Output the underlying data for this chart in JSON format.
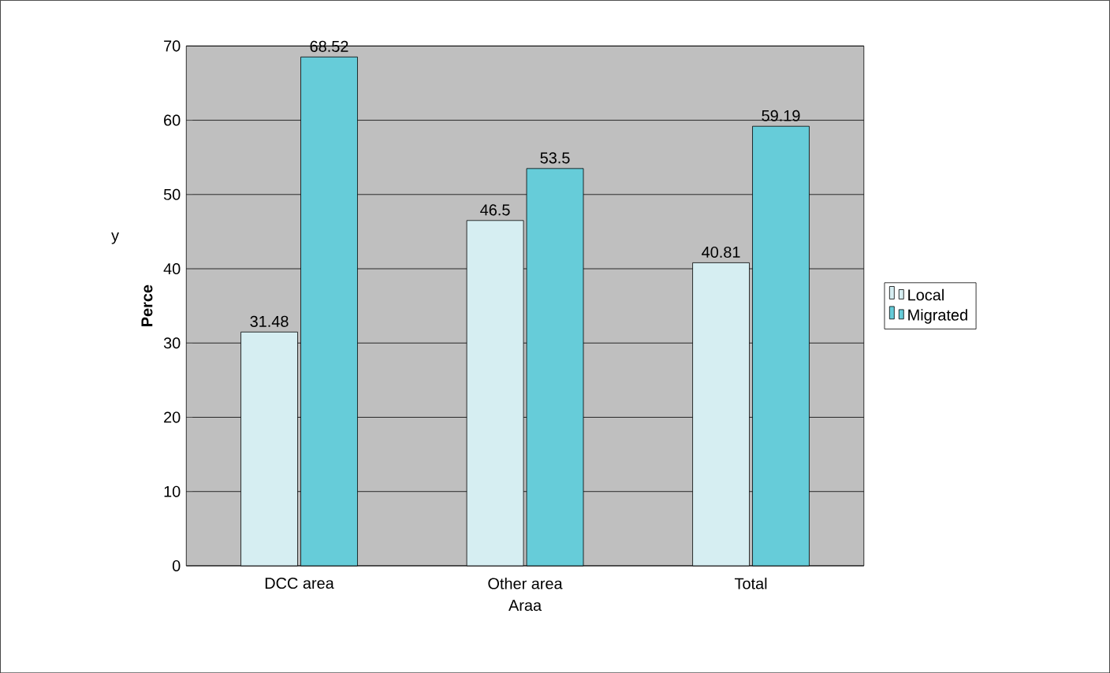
{
  "chart_data": {
    "type": "bar",
    "xlabel": "Araa",
    "ylabel": "Perce",
    "annotations": [
      "y"
    ],
    "categories": [
      "DCC area",
      "Other area",
      "Total"
    ],
    "series": [
      {
        "name": "Local",
        "color": "#d6eef2",
        "values": [
          31.48,
          46.5,
          40.81
        ]
      },
      {
        "name": "Migrated",
        "color": "#66ccd9",
        "values": [
          68.52,
          53.5,
          59.19
        ]
      }
    ],
    "ylim": [
      0,
      70
    ],
    "yticks": [
      0,
      10,
      20,
      30,
      40,
      50,
      60,
      70
    ],
    "grid": "y",
    "legend": "right",
    "data_labels": true
  }
}
